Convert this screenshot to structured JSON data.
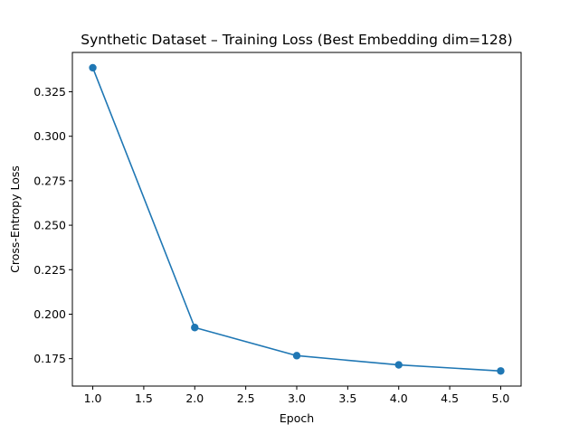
{
  "chart_data": {
    "type": "line",
    "title": "Synthetic Dataset – Training Loss (Best Embedding dim=128)",
    "xlabel": "Epoch",
    "ylabel": "Cross-Entropy Loss",
    "x": [
      1,
      2,
      3,
      4,
      5
    ],
    "series": [
      {
        "values": [
          0.3385,
          0.1925,
          0.1767,
          0.1715,
          0.1681
        ],
        "color": "#1f77b4",
        "marker": "circle"
      }
    ],
    "xlim": [
      0.8,
      5.2
    ],
    "ylim": [
      0.1596,
      0.3471
    ],
    "xticks": [
      1.0,
      1.5,
      2.0,
      2.5,
      3.0,
      3.5,
      4.0,
      4.5,
      5.0
    ],
    "xtick_labels": [
      "1.0",
      "1.5",
      "2.0",
      "2.5",
      "3.0",
      "3.5",
      "4.0",
      "4.5",
      "5.0"
    ],
    "yticks": [
      0.175,
      0.2,
      0.225,
      0.25,
      0.275,
      0.3,
      0.325
    ],
    "ytick_labels": [
      "0.175",
      "0.200",
      "0.225",
      "0.250",
      "0.275",
      "0.300",
      "0.325"
    ],
    "grid": false,
    "legend": "none"
  }
}
